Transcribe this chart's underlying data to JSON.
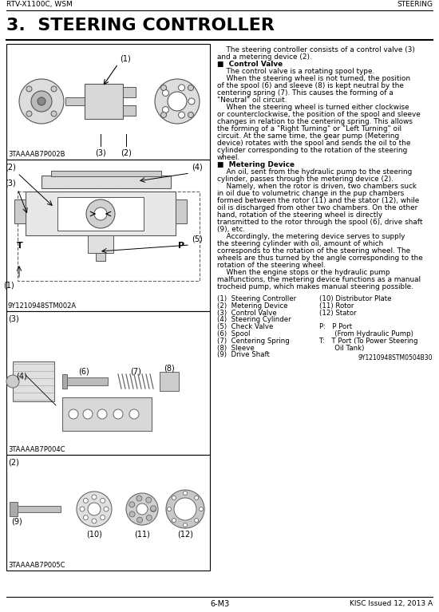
{
  "page_header_left": "RTV-X1100C, WSM",
  "page_header_right": "STEERING",
  "section_title": "3.  STEERING CONTROLLER",
  "page_footer_center": "6-M3",
  "page_footer_right": "KISC Issued 12, 2013 A",
  "diagram1_label": "3TAAAAB7P002B",
  "diagram2_label": "9Y1210948STM002A",
  "diagram3_label": "3TAAAAB7P004C",
  "diagram4_label": "3TAAAAB7P005C",
  "bg_color": "#ffffff",
  "body_text": [
    "    The steering controller consists of a control valve (3)",
    "and a metering device (2).",
    "■  Control Valve",
    "    The control valve is a rotating spool type.",
    "    When the steering wheel is not turned, the position",
    "of the spool (6) and sleeve (8) is kept neutral by the",
    "centering spring (7). This causes the forming of a",
    "\"Neutral\" oil circuit.",
    "    When the steering wheel is turned either clockwise",
    "or counterclockwise, the position of the spool and sleeve",
    "changes in relation to the centering spring. This allows",
    "the forming of a \"Right Turning\" or \"Left Turning\" oil",
    "circuit. At the same time, the gear pump (Metering",
    "device) rotates with the spool and sends the oil to the",
    "cylinder corresponding to the rotation of the steering",
    "wheel.",
    "■  Metering Device",
    "    An oil, sent from the hydraulic pump to the steering",
    "cylinder, passes through the metering device (2).",
    "    Namely, when the rotor is driven, two chambers suck",
    "in oil due to volumetric change in the pup chambers",
    "formed between the rotor (11) and the stator (12), while",
    "oil is discharged from other two chambers. On the other",
    "hand, rotation of the steering wheel is directly",
    "transmitted to the rotor through the spool (6), drive shaft",
    "(9), etc.",
    "    Accordingly, the metering device serves to supply",
    "the steering cylinder with oil, amount of which",
    "corresponds to the rotation of the steering wheel. The",
    "wheels are thus turned by the angle corresponding to the",
    "rotation of the steering wheel.",
    "    When the engine stops or the hydraulic pump",
    "malfunctions, the metering device functions as a manual",
    "trocheid pump, which makes manual steering possible."
  ],
  "parts_list_col1": [
    "(1)  Steering Controller",
    "(2)  Metering Device",
    "(3)  Control Valve",
    "(4)  Steering Cylinder",
    "(5)  Check Valve",
    "(6)  Spool",
    "(7)  Centering Spring",
    "(8)  Sleeve",
    "(9)  Drive Shaft"
  ],
  "parts_list_col2": [
    "(10) Distributor Plate",
    "(11) Rotor",
    "(12) Stator",
    "",
    "P:   P Port",
    "       (From Hydraulic Pump)",
    "T:   T Port (To Power Steering",
    "       Oil Tank)"
  ],
  "diagram_note": "9Y1210948STM0504B30"
}
